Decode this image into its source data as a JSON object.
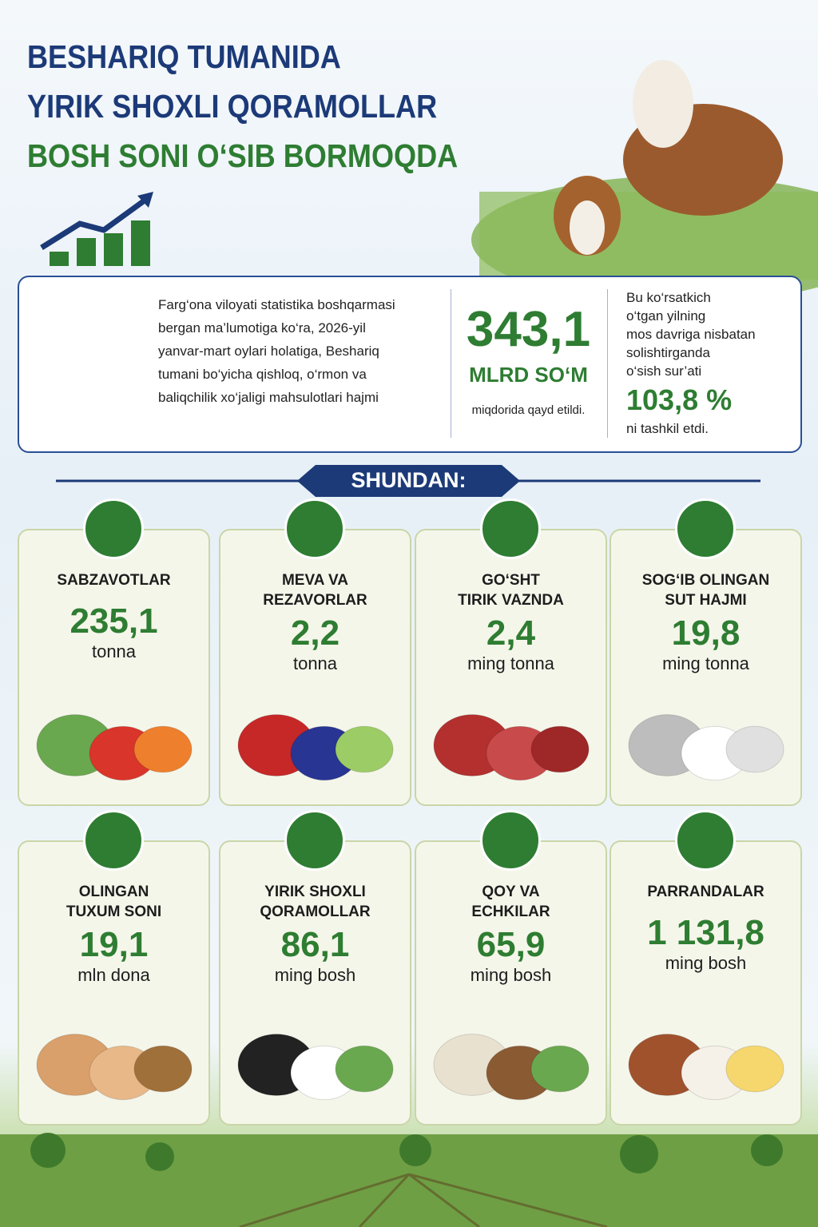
{
  "header": {
    "title_lines": [
      "BESHARIQ TUMANIDA",
      "YIRIK SHOXLI QORAMOLLAR",
      "BOSH SONI O‘SIB BORMOQDA"
    ]
  },
  "summary": {
    "text_lines": [
      "Farg‘ona viloyati statistika boshqarmasi",
      "bergan ma’lumotiga ko‘ra, 2026-yil",
      "yanvar-mart oylari holatiga, Beshariq",
      "tumani bo‘yicha qishloq, o‘rmon va",
      "baliqchilik xo‘jaligi mahsulotlari hajmi"
    ],
    "amount": "343,1",
    "amount_unit": "MLRD SO‘M",
    "amount_note": "miqdorida qayd etildi.",
    "growth_lines": [
      "Bu ko‘rsatkich",
      "o‘tgan yilning",
      "mos davriga nisbatan",
      "solishtirganda",
      "o‘sish sur’ati"
    ],
    "growth": "103,8 %",
    "growth_note": "ni tashkil etdi."
  },
  "section_title": "SHUNDAN:",
  "cards": [
    {
      "label_lines": [
        "SABZAVOTLAR"
      ],
      "value": "235,1",
      "unit": "tonna"
    },
    {
      "label_lines": [
        "MEVA VA",
        "REZAVORLAR"
      ],
      "value": "2,2",
      "unit": "tonna"
    },
    {
      "label_lines": [
        "GO‘SHT",
        "TIRIK VAZNDA"
      ],
      "value": "2,4",
      "unit": "ming tonna"
    },
    {
      "label_lines": [
        "SOG‘IB OLINGAN",
        "SUT HAJMI"
      ],
      "value": "19,8",
      "unit": "ming tonna"
    },
    {
      "label_lines": [
        "OLINGAN",
        "TUXUM SONI"
      ],
      "value": "19,1",
      "unit": "mln dona"
    },
    {
      "label_lines": [
        "YIRIK SHOXLI",
        "QORAMOLLAR"
      ],
      "value": "86,1",
      "unit": "ming bosh"
    },
    {
      "label_lines": [
        "QOY VA",
        "ECHKILAR"
      ],
      "value": "65,9",
      "unit": "ming bosh"
    },
    {
      "label_lines": [
        "PARRANDALAR"
      ],
      "value": "1 131,8",
      "unit": "ming bosh"
    }
  ]
}
